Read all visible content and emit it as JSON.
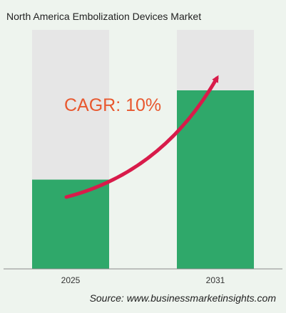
{
  "chart_data": {
    "type": "bar",
    "title": "North America Embolization Devices Market",
    "categories": [
      "2025",
      "2031"
    ],
    "values": [
      1.0,
      2.0
    ],
    "value_note_hidden": null,
    "annotation": "CAGR: 10%",
    "source": "Source: www.businessmarketinsights.com",
    "grid": false,
    "legend": "none",
    "colors": {
      "bar": "#2fa86a",
      "bar_track": "#e6e6e6",
      "arrow": "#d81b4a",
      "annotation": "#e8582f",
      "background": "#eef4ee",
      "baseline": "#8a8a8a"
    }
  }
}
